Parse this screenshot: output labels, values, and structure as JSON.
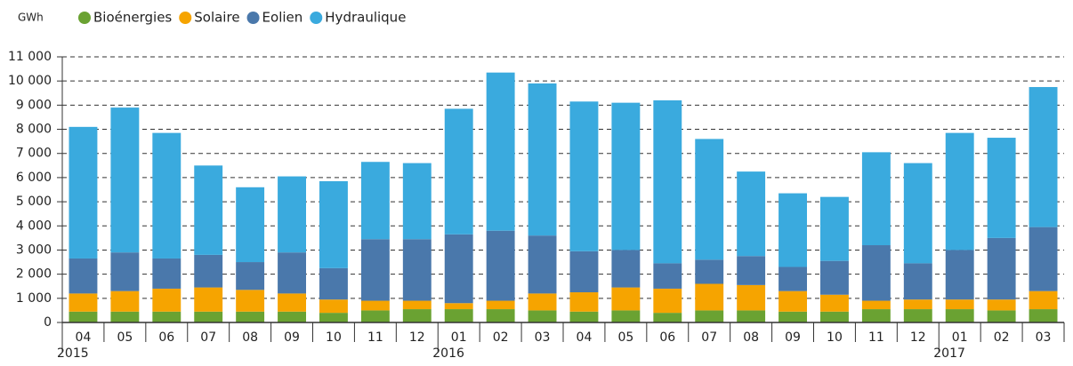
{
  "chart_data": {
    "type": "stacked_bar",
    "y_label": "GWh",
    "categories": [
      "04",
      "05",
      "06",
      "07",
      "08",
      "09",
      "10",
      "11",
      "12",
      "01",
      "02",
      "03",
      "04",
      "05",
      "06",
      "07",
      "08",
      "09",
      "10",
      "11",
      "12",
      "01",
      "02",
      "03"
    ],
    "year_labels": [
      "2015",
      null,
      null,
      null,
      null,
      null,
      null,
      null,
      null,
      "2016",
      null,
      null,
      null,
      null,
      null,
      null,
      null,
      null,
      null,
      null,
      null,
      "2017",
      null,
      null
    ],
    "series": [
      {
        "name": "Bioénergies",
        "color": "#6aa232",
        "values": [
          450,
          450,
          450,
          450,
          450,
          450,
          400,
          500,
          550,
          550,
          550,
          500,
          450,
          500,
          400,
          500,
          500,
          450,
          450,
          550,
          550,
          550,
          500,
          550
        ]
      },
      {
        "name": "Solaire",
        "color": "#f6a400",
        "values": [
          750,
          850,
          950,
          1000,
          900,
          750,
          550,
          400,
          350,
          250,
          350,
          700,
          800,
          950,
          1000,
          1100,
          1050,
          850,
          700,
          350,
          400,
          400,
          450,
          750
        ]
      },
      {
        "name": "Eolien",
        "color": "#4a78ab",
        "values": [
          1450,
          1600,
          1250,
          1350,
          1150,
          1700,
          1300,
          2550,
          2550,
          2850,
          2900,
          2400,
          1700,
          1550,
          1050,
          1000,
          1200,
          1000,
          1400,
          2300,
          1500,
          2050,
          2550,
          2650
        ]
      },
      {
        "name": "Hydraulique",
        "color": "#3aaade",
        "values": [
          5450,
          6000,
          5200,
          3700,
          3100,
          3150,
          3600,
          3200,
          3150,
          5200,
          6550,
          6300,
          6200,
          6100,
          6750,
          5000,
          3500,
          3050,
          2650,
          3850,
          4150,
          4850,
          4150,
          5800
        ]
      }
    ],
    "ylim": [
      0,
      11000
    ],
    "yticks": [
      0,
      {
        "value": 1000,
        "label": "1 000"
      },
      {
        "value": 2000,
        "label": "2 000"
      },
      {
        "value": 3000,
        "label": "3 000"
      },
      {
        "value": 4000,
        "label": "4 000"
      },
      {
        "value": 5000,
        "label": "5 000"
      },
      {
        "value": 6000,
        "label": "6 000"
      },
      {
        "value": 7000,
        "label": "7 000"
      },
      {
        "value": 8000,
        "label": "8 000"
      },
      {
        "value": 9000,
        "label": "9 000"
      },
      {
        "value": 10000,
        "label": "10 000"
      },
      {
        "value": 11000,
        "label": "11 000"
      }
    ],
    "grid": true,
    "legend": "top"
  }
}
